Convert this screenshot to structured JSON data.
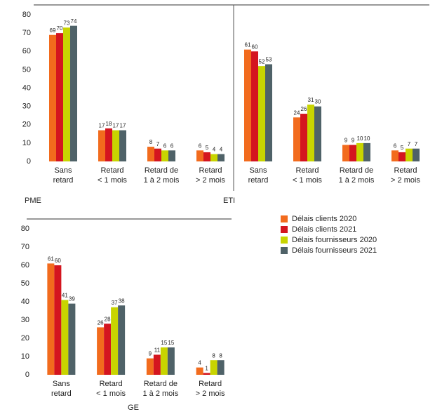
{
  "chart_data": [
    {
      "type": "bar",
      "title": "PME",
      "categories": [
        "Sans\nretard",
        "Retard\n< 1 mois",
        "Retard de\n1 à 2 mois",
        "Retard\n> 2 mois"
      ],
      "series": [
        {
          "name": "Délais clients 2020",
          "color": "#f26b1d",
          "values": [
            69,
            17,
            8,
            6
          ]
        },
        {
          "name": "Délais clients 2021",
          "color": "#d4151f",
          "values": [
            70,
            18,
            7,
            5
          ]
        },
        {
          "name": "Délais fournisseurs 2020",
          "color": "#c8d400",
          "values": [
            73,
            17,
            6,
            4
          ]
        },
        {
          "name": "Délais fournisseurs 2021",
          "color": "#4f6268",
          "values": [
            74,
            17,
            6,
            4
          ]
        }
      ],
      "ylim": [
        0,
        80
      ],
      "yticks": [
        0,
        10,
        20,
        30,
        40,
        50,
        60,
        70,
        80
      ]
    },
    {
      "type": "bar",
      "title": "ETI",
      "categories": [
        "Sans\nretard",
        "Retard\n< 1 mois",
        "Retard de\n1 à 2 mois",
        "Retard\n> 2 mois"
      ],
      "series": [
        {
          "color": "#f26b1d",
          "values": [
            61,
            24,
            9,
            6
          ]
        },
        {
          "color": "#d4151f",
          "values": [
            60,
            26,
            9,
            5
          ]
        },
        {
          "color": "#c8d400",
          "values": [
            52,
            31,
            10,
            7
          ]
        },
        {
          "color": "#4f6268",
          "values": [
            53,
            30,
            10,
            7
          ]
        }
      ],
      "ylim": [
        0,
        80
      ]
    },
    {
      "type": "bar",
      "title": "GE",
      "categories": [
        "Sans\nretard",
        "Retard\n< 1 mois",
        "Retard de\n1 à 2 mois",
        "Retard\n> 2 mois"
      ],
      "series": [
        {
          "color": "#f26b1d",
          "values": [
            61,
            26,
            9,
            4
          ]
        },
        {
          "color": "#d4151f",
          "values": [
            60,
            28,
            11,
            1
          ]
        },
        {
          "color": "#c8d400",
          "values": [
            41,
            37,
            15,
            8
          ]
        },
        {
          "color": "#4f6268",
          "values": [
            39,
            38,
            15,
            8
          ]
        }
      ],
      "ylim": [
        0,
        80
      ],
      "yticks": [
        0,
        10,
        20,
        30,
        40,
        50,
        60,
        70,
        80
      ]
    }
  ]
}
